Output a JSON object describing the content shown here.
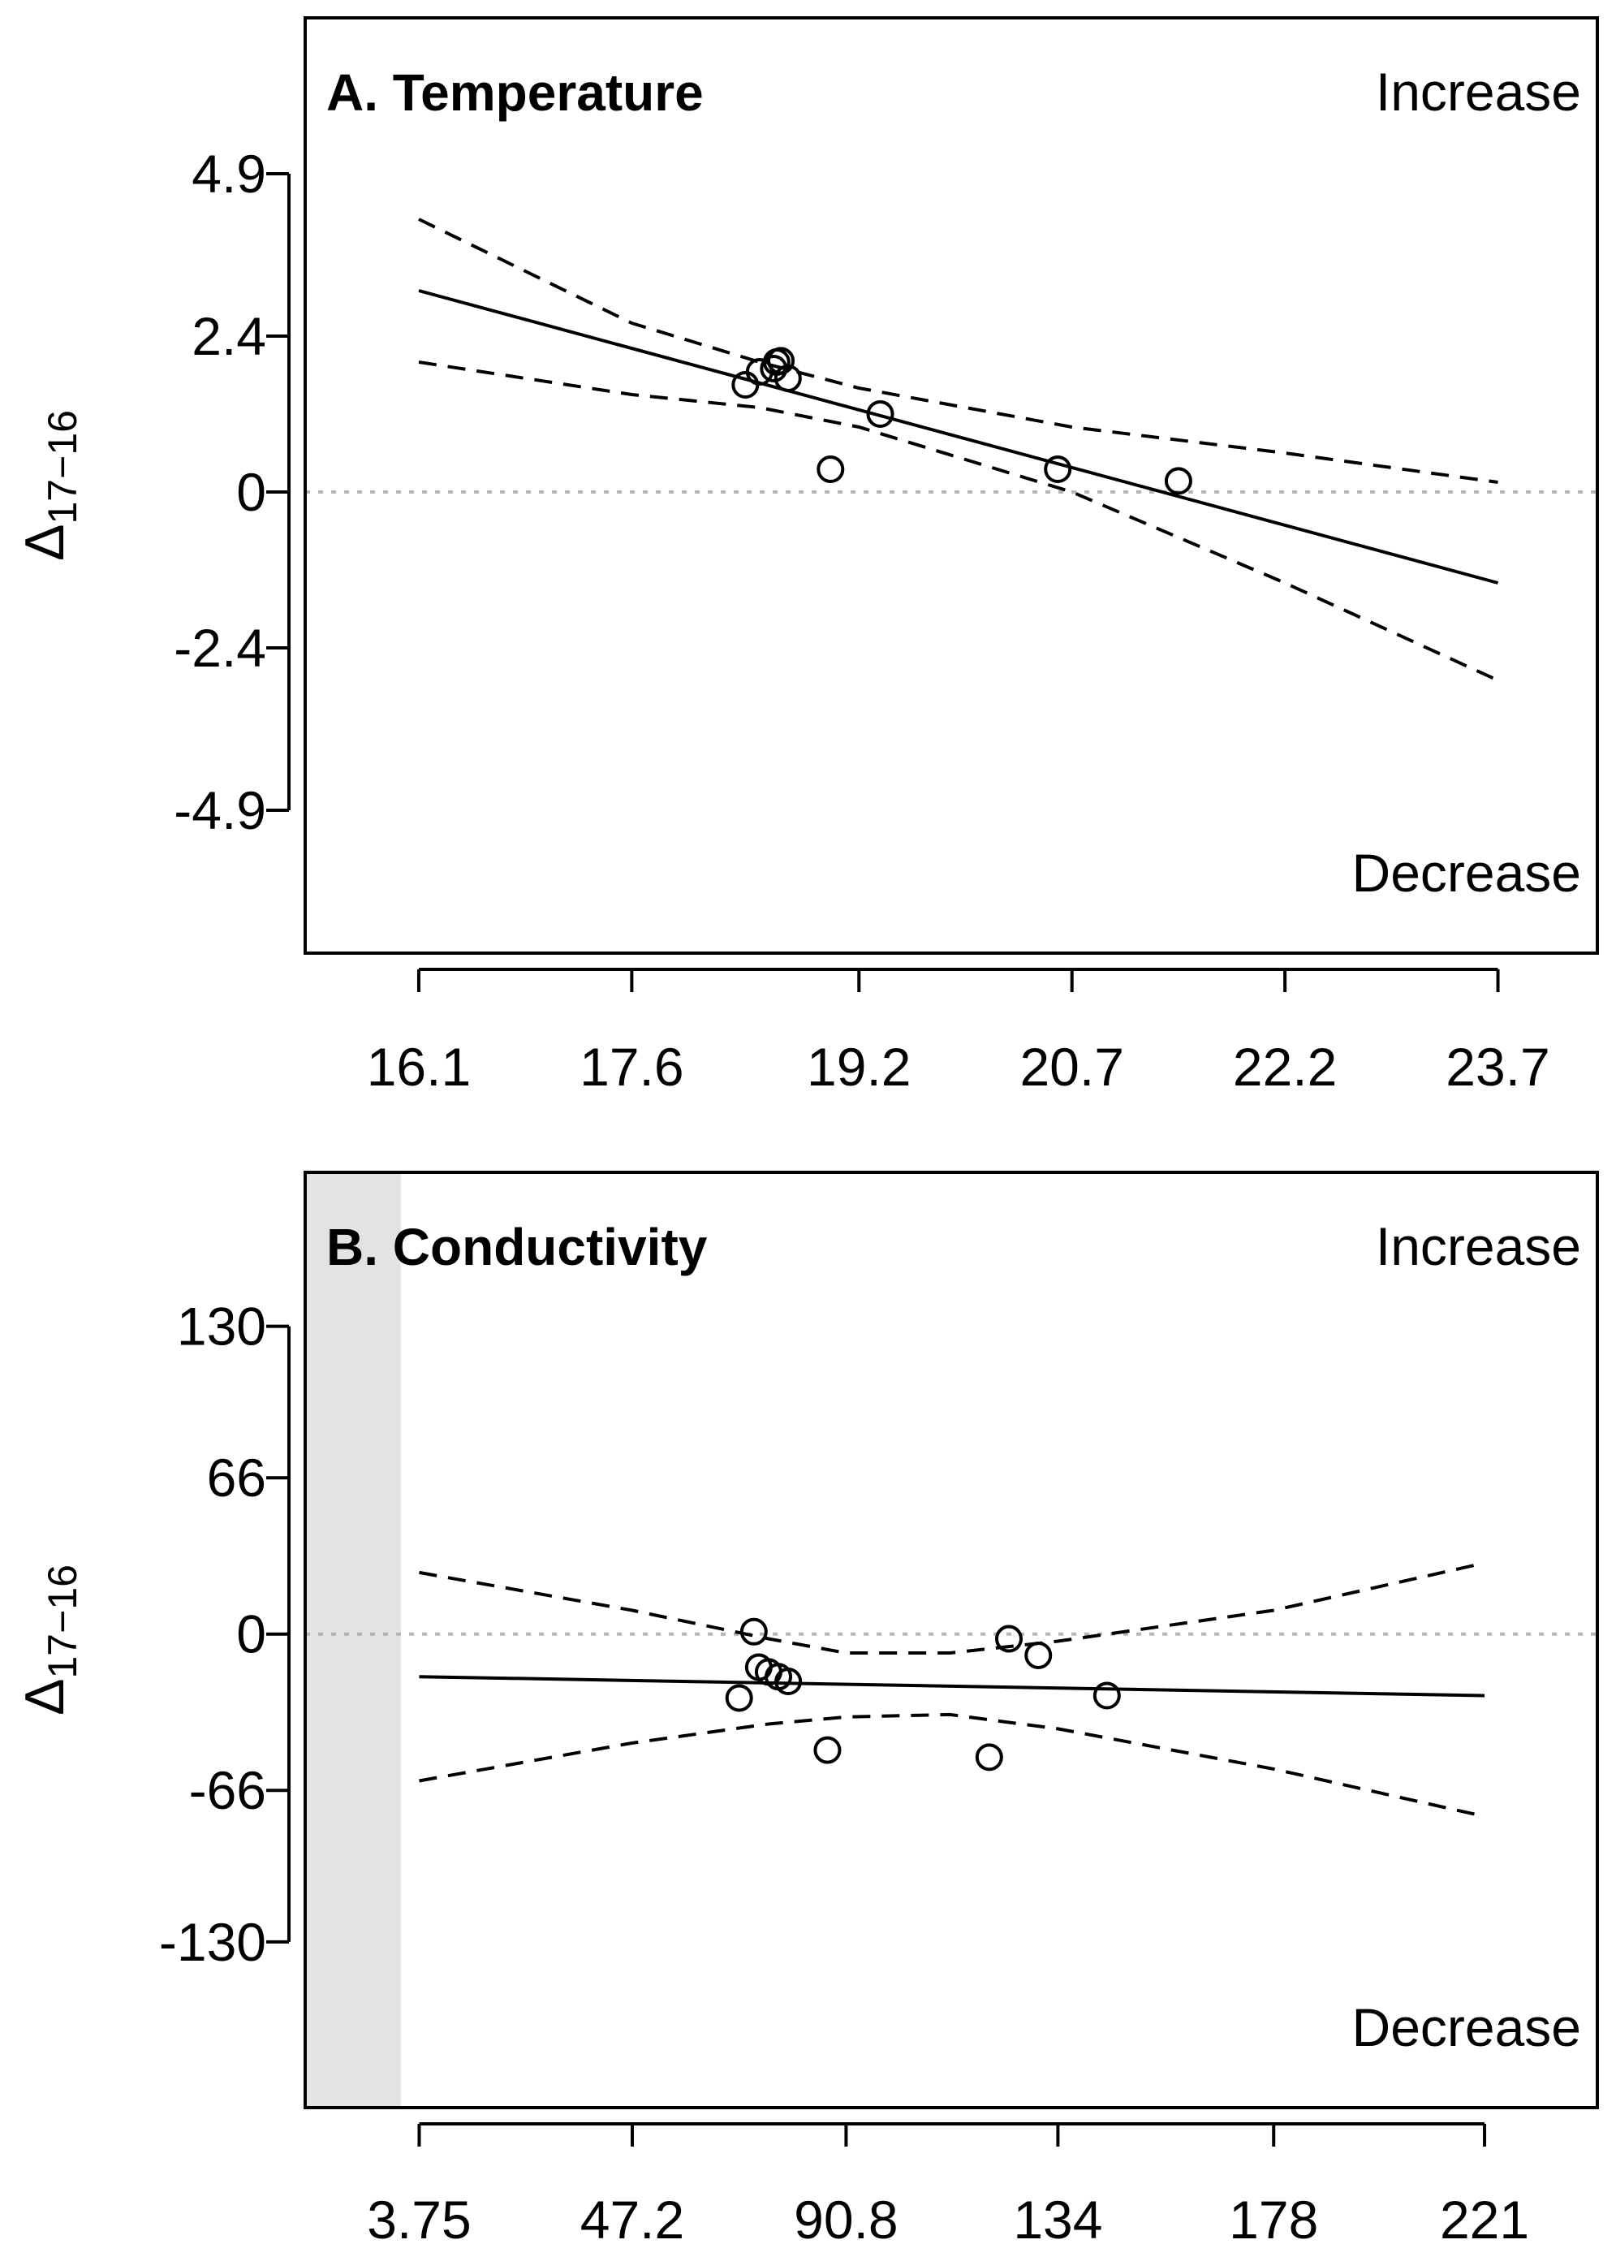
{
  "chart_data": [
    {
      "type": "scatter",
      "panel": "A",
      "title": "A. Temperature",
      "xlabel": "",
      "ylabel": {
        "symbol": "Δ",
        "subscript": "17−16"
      },
      "increase_label": "Increase",
      "decrease_label": "Decrease",
      "xlim": [
        15.3,
        24.4
      ],
      "ylim": [
        -7.1,
        7.3
      ],
      "x_ticks": [
        16.1,
        17.6,
        19.2,
        20.7,
        22.2,
        23.7
      ],
      "x_tick_labels": [
        "16.1",
        "17.6",
        "19.2",
        "20.7",
        "22.2",
        "23.7"
      ],
      "y_ticks": [
        4.9,
        2.4,
        0,
        -2.4,
        -4.9
      ],
      "y_tick_labels": [
        "4.9",
        "2.4",
        "0",
        "-2.4",
        "-4.9"
      ],
      "reference_line": 0,
      "points": {
        "x": [
          18.4,
          18.5,
          18.6,
          18.62,
          18.65,
          18.7,
          19.0,
          19.35,
          20.6,
          21.45
        ],
        "y": [
          1.65,
          1.85,
          1.9,
          2.0,
          2.02,
          1.75,
          0.35,
          1.2,
          0.35,
          0.17
        ]
      },
      "fit_line": {
        "x": [
          16.1,
          23.7
        ],
        "y": [
          3.1,
          -1.4
        ]
      },
      "ci_upper": {
        "x": [
          16.1,
          17.6,
          18.5,
          19.2,
          20.7,
          22.2,
          23.7
        ],
        "y": [
          4.2,
          2.6,
          2.0,
          1.6,
          1.0,
          0.6,
          0.15
        ]
      },
      "ci_lower": {
        "x": [
          16.1,
          17.6,
          18.5,
          19.2,
          20.7,
          22.2,
          23.7
        ],
        "y": [
          2.0,
          1.5,
          1.3,
          1.0,
          0.0,
          -1.4,
          -2.9
        ]
      }
    },
    {
      "type": "scatter",
      "panel": "B",
      "title": "B. Conductivity",
      "xlabel": "",
      "ylabel": {
        "symbol": "Δ",
        "subscript": "17−16"
      },
      "increase_label": "Increase",
      "decrease_label": "Decrease",
      "xlim": [
        -19.5,
        244
      ],
      "ylim": [
        -200,
        195
      ],
      "shaded_region_x": [
        -19.5,
        0
      ],
      "x_ticks": [
        3.75,
        47.2,
        90.8,
        134,
        178,
        221
      ],
      "x_tick_labels": [
        "3.75",
        "47.2",
        "90.8",
        "134",
        "178",
        "221"
      ],
      "y_ticks": [
        130,
        66,
        0,
        -66,
        -130
      ],
      "y_tick_labels": [
        "130",
        "66",
        "0",
        "-66",
        "-130"
      ],
      "reference_line": 0,
      "points": {
        "x": [
          69,
          72,
          73,
          75,
          77,
          79,
          87,
          120,
          124,
          130,
          144
        ],
        "y": [
          -27,
          1,
          -14,
          -16,
          -18,
          -20,
          -49,
          -52,
          -2,
          -9,
          -26
        ]
      },
      "fit_line": {
        "x": [
          3.75,
          221
        ],
        "y": [
          -18,
          -26
        ]
      },
      "ci_upper": {
        "x": [
          3.75,
          47.2,
          75,
          90.8,
          112,
          134,
          178,
          221
        ],
        "y": [
          26,
          10,
          -2,
          -8,
          -8,
          -3,
          10,
          30
        ]
      },
      "ci_lower": {
        "x": [
          3.75,
          47.2,
          75,
          90.8,
          112,
          134,
          178,
          221
        ],
        "y": [
          -62,
          -46,
          -38,
          -35,
          -34,
          -40,
          -57,
          -77
        ]
      }
    }
  ]
}
